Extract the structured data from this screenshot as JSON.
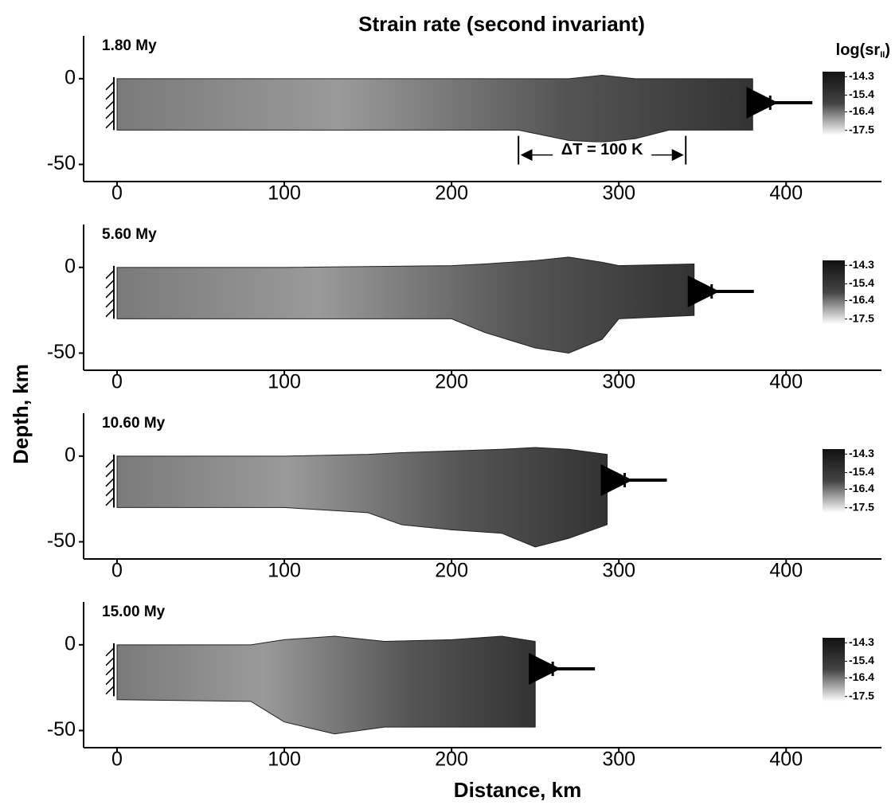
{
  "figure": {
    "title": "Strain rate (second invariant)",
    "xlabel": "Distance, km",
    "ylabel": "Depth, km",
    "colorbar_label": [
      "log(sr",
      "II",
      ")"
    ]
  },
  "chart_data": [
    {
      "type": "area",
      "label": "1.80 My",
      "xlim": [
        -20,
        457
      ],
      "ylim": [
        -60,
        25
      ],
      "xticks": [
        0,
        100,
        200,
        300,
        400
      ],
      "yticks": [
        0,
        -50
      ],
      "x": [
        0,
        100,
        200,
        240,
        270,
        290,
        310,
        330,
        380
      ],
      "top": [
        0,
        0,
        0,
        0,
        0,
        2,
        0,
        0,
        0
      ],
      "bottom": [
        -30,
        -30,
        -30,
        -30,
        -36,
        -37,
        -35,
        -30,
        -30
      ],
      "colorbar_ticks": [
        -14.3,
        -15.4,
        -16.4,
        -17.5
      ],
      "clim": [
        -17.8,
        -14.0
      ],
      "annotation": {
        "text": "ΔT = 100 K",
        "x": [
          240,
          340
        ]
      }
    },
    {
      "type": "area",
      "label": "5.60 My",
      "xlim": [
        -20,
        457
      ],
      "ylim": [
        -60,
        25
      ],
      "xticks": [
        0,
        100,
        200,
        300,
        400
      ],
      "yticks": [
        0,
        -50
      ],
      "x": [
        0,
        100,
        200,
        220,
        250,
        270,
        290,
        300,
        345
      ],
      "top": [
        0,
        0,
        1,
        2,
        4,
        6,
        3,
        1,
        2
      ],
      "bottom": [
        -30,
        -30,
        -30,
        -38,
        -47,
        -50,
        -42,
        -30,
        -28
      ],
      "colorbar_ticks": [
        -14.3,
        -15.4,
        -16.4,
        -17.5
      ],
      "clim": [
        -17.8,
        -14.0
      ]
    },
    {
      "type": "area",
      "label": "10.60 My",
      "xlim": [
        -20,
        457
      ],
      "ylim": [
        -60,
        25
      ],
      "xticks": [
        0,
        100,
        200,
        300,
        400
      ],
      "yticks": [
        0,
        -50
      ],
      "x": [
        0,
        100,
        150,
        170,
        200,
        230,
        250,
        270,
        293
      ],
      "top": [
        0,
        0,
        1,
        2,
        3,
        4,
        5,
        4,
        1
      ],
      "bottom": [
        -30,
        -30,
        -33,
        -40,
        -43,
        -45,
        -53,
        -48,
        -40
      ],
      "colorbar_ticks": [
        -14.3,
        -15.4,
        -16.4,
        -17.5
      ],
      "clim": [
        -17.8,
        -14.0
      ]
    },
    {
      "type": "area",
      "label": "15.00 My",
      "xlim": [
        -20,
        457
      ],
      "ylim": [
        -60,
        25
      ],
      "xticks": [
        0,
        100,
        200,
        300,
        400
      ],
      "yticks": [
        0,
        -50
      ],
      "x": [
        0,
        80,
        100,
        130,
        160,
        200,
        230,
        250
      ],
      "top": [
        0,
        0,
        3,
        5,
        2,
        3,
        5,
        2
      ],
      "bottom": [
        -32,
        -33,
        -45,
        -52,
        -48,
        -48,
        -48,
        -48
      ],
      "colorbar_ticks": [
        -14.3,
        -15.4,
        -16.4,
        -17.5
      ],
      "clim": [
        -17.8,
        -14.0
      ]
    }
  ]
}
